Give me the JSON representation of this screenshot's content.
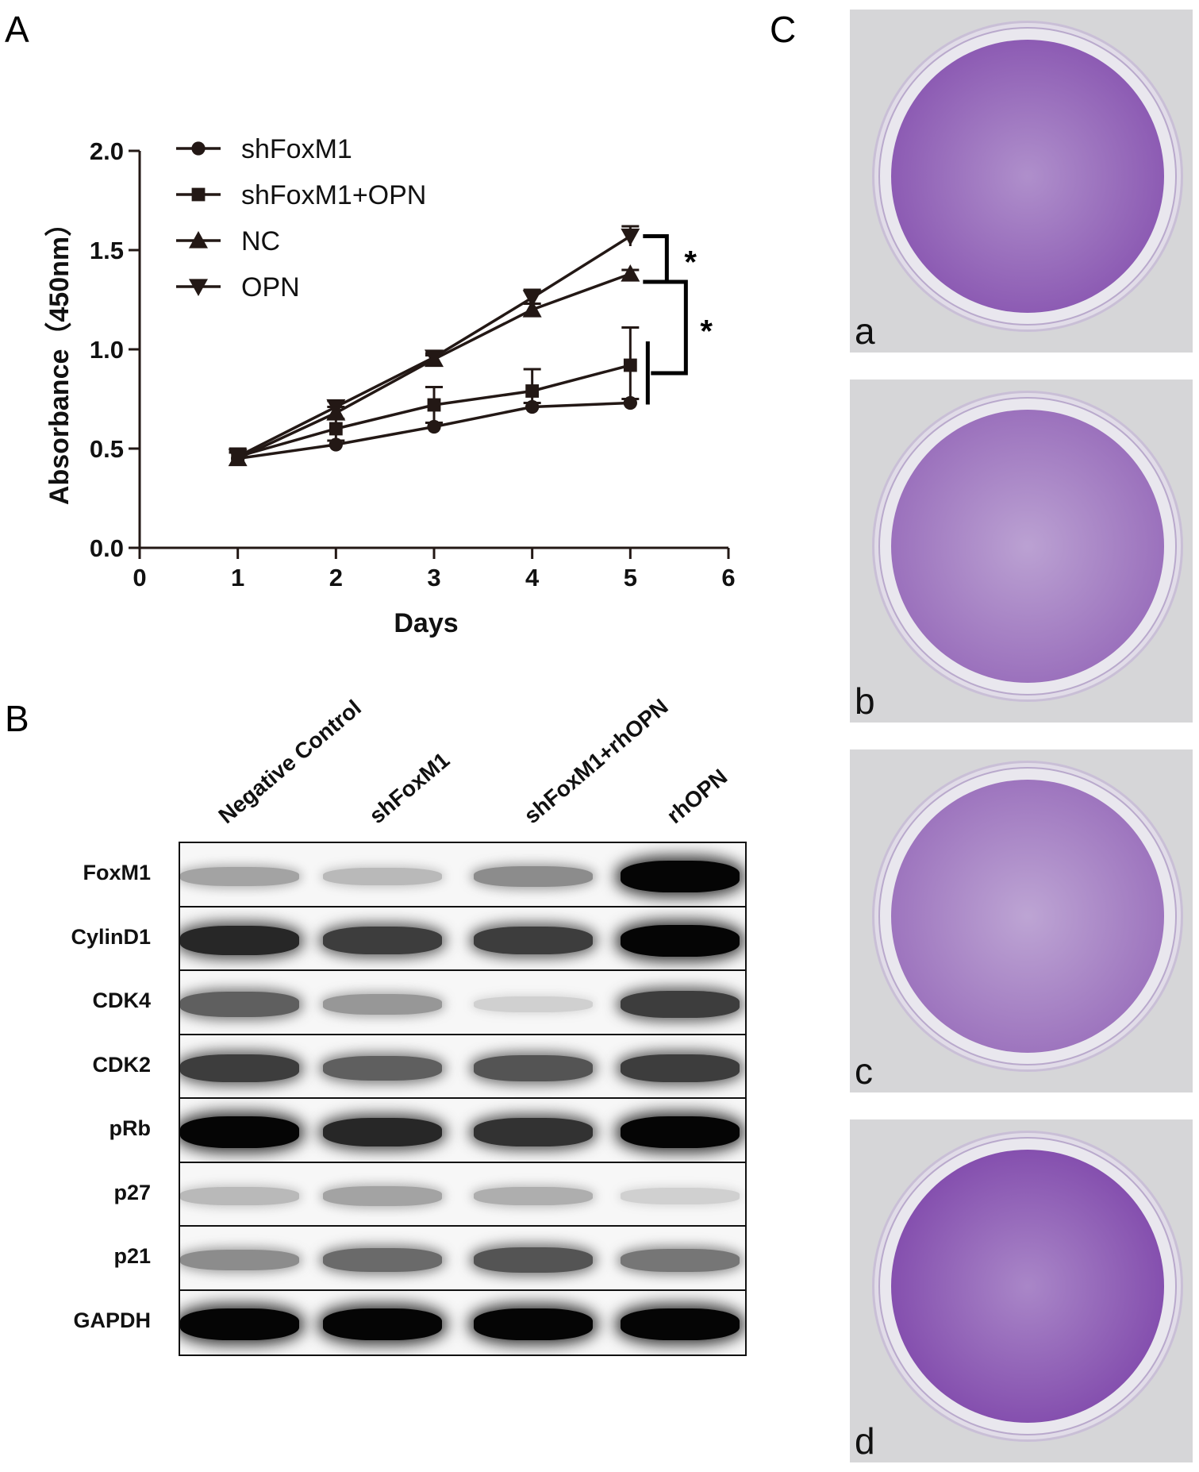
{
  "panels": {
    "A": "A",
    "B": "B",
    "C": "C"
  },
  "chart_data": {
    "type": "line",
    "title": "",
    "xlabel": "Days",
    "ylabel": "Absorbance（450nm）",
    "xlim": [
      0,
      6
    ],
    "ylim": [
      0,
      2.0
    ],
    "x_ticks": [
      "0",
      "1",
      "2",
      "3",
      "4",
      "5",
      "6"
    ],
    "y_ticks": [
      "0.0",
      "0.5",
      "1.0",
      "1.5",
      "2.0"
    ],
    "grid": false,
    "legend_position": "top-left",
    "x": [
      1,
      2,
      3,
      4,
      5
    ],
    "series": [
      {
        "name": "shFoxM1",
        "marker": "circle",
        "values": [
          0.45,
          0.52,
          0.61,
          0.71,
          0.73
        ],
        "errors": [
          0.03,
          0.02,
          0.02,
          0.02,
          0.02
        ]
      },
      {
        "name": "shFoxM1+OPN",
        "marker": "square",
        "values": [
          0.46,
          0.6,
          0.72,
          0.79,
          0.92
        ],
        "errors": [
          0.04,
          0.05,
          0.09,
          0.11,
          0.19
        ]
      },
      {
        "name": "NC",
        "marker": "triangle-up",
        "values": [
          0.45,
          0.68,
          0.95,
          1.2,
          1.38
        ],
        "errors": [
          0.03,
          0.03,
          0.02,
          0.03,
          0.02
        ]
      },
      {
        "name": "OPN",
        "marker": "triangle-down",
        "values": [
          0.46,
          0.71,
          0.96,
          1.26,
          1.57
        ],
        "errors": [
          0.03,
          0.03,
          0.02,
          0.04,
          0.05
        ]
      }
    ],
    "annotations": [
      "*",
      "*"
    ]
  },
  "western_blot": {
    "lanes": [
      "Negative Control",
      "shFoxM1",
      "shFoxM1+rhOPN",
      "rhOPN"
    ],
    "rows": [
      {
        "name": "FoxM1",
        "intensity": [
          0.3,
          0.2,
          0.4,
          1.0
        ]
      },
      {
        "name": "CylinD1",
        "intensity": [
          0.85,
          0.75,
          0.75,
          1.0
        ]
      },
      {
        "name": "CDK4",
        "intensity": [
          0.6,
          0.35,
          0.1,
          0.75
        ]
      },
      {
        "name": "CDK2",
        "intensity": [
          0.75,
          0.6,
          0.65,
          0.75
        ]
      },
      {
        "name": "pRb",
        "intensity": [
          1.0,
          0.85,
          0.8,
          1.0
        ]
      },
      {
        "name": "p27",
        "intensity": [
          0.2,
          0.3,
          0.25,
          0.1
        ]
      },
      {
        "name": "p21",
        "intensity": [
          0.4,
          0.55,
          0.65,
          0.5
        ]
      },
      {
        "name": "GAPDH",
        "intensity": [
          1.0,
          1.0,
          1.0,
          1.0
        ]
      }
    ]
  },
  "colony_plates": [
    {
      "label": "a",
      "density": 0.75
    },
    {
      "label": "b",
      "density": 0.45
    },
    {
      "label": "c",
      "density": 0.4
    },
    {
      "label": "d",
      "density": 0.9
    }
  ],
  "colors": {
    "ink": "#231815",
    "stain": "#6a2a9c",
    "plate_bg": "#d6d6d8"
  }
}
